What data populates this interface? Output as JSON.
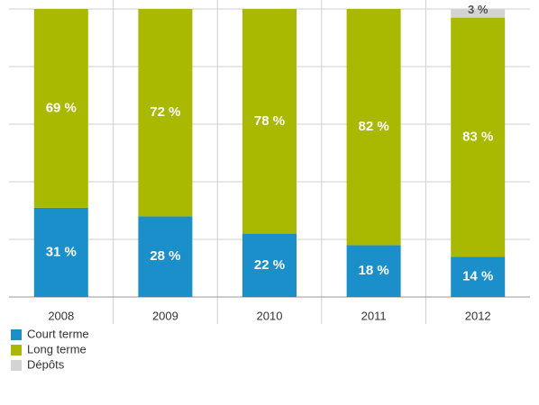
{
  "chart_data": {
    "type": "stacked_bar",
    "categories": [
      "2008",
      "2009",
      "2010",
      "2011",
      "2012"
    ],
    "series": [
      {
        "name": "Court terme",
        "color": "#1b8fca",
        "values": [
          31,
          28,
          22,
          18,
          14
        ],
        "value_labels": [
          "31 %",
          "28 %",
          "22 %",
          "18 %",
          "14 %"
        ]
      },
      {
        "name": "Long terme",
        "color": "#a9b800",
        "values": [
          69,
          72,
          78,
          82,
          83
        ],
        "value_labels": [
          "69 %",
          "72 %",
          "78 %",
          "82 %",
          "83 %"
        ]
      },
      {
        "name": "Dépôts",
        "color": "#d2d3d5",
        "values": [
          null,
          null,
          null,
          null,
          3
        ],
        "value_labels": [
          null,
          null,
          null,
          null,
          "3 %"
        ]
      }
    ],
    "ylim": [
      0,
      100
    ],
    "yticks": [
      0,
      20,
      40,
      60,
      80,
      100
    ],
    "grid": true
  }
}
